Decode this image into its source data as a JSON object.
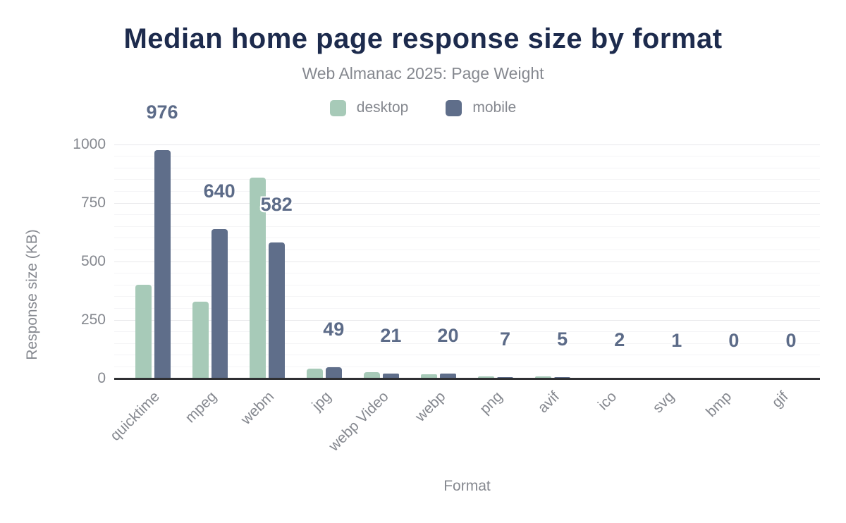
{
  "header": {
    "title": "Median home page response size by format",
    "subtitle": "Web Almanac 2025: Page Weight"
  },
  "legend": {
    "items": [
      {
        "label": "desktop",
        "color": "#a7cab8"
      },
      {
        "label": "mobile",
        "color": "#5f6e8a"
      }
    ]
  },
  "colors": {
    "title": "#1d2b4d",
    "muted_text": "#85888f",
    "value_label": "#5c6b88",
    "desktop_bar": "#a7cab8",
    "mobile_bar": "#5f6e8a",
    "axis_line": "#2f3033",
    "gridline_major": "#e8e8eb",
    "gridline_minor": "#f4f4f6"
  },
  "chart_data": {
    "type": "bar",
    "title": "Median home page response size by format",
    "subtitle": "Web Almanac 2025: Page Weight",
    "xlabel": "Format",
    "ylabel": "Response size (KB)",
    "ylim": [
      0,
      1000
    ],
    "yticks": [
      0,
      250,
      500,
      750,
      1000
    ],
    "grid": "horizontal, minor gridlines every 50 KB",
    "legend_position": "top-center",
    "categories": [
      "quicktime",
      "mpeg",
      "webm",
      "jpg",
      "webp Video",
      "webp",
      "png",
      "avif",
      "ico",
      "svg",
      "bmp",
      "gif"
    ],
    "series": [
      {
        "name": "desktop",
        "color": "#a7cab8",
        "values": [
          400,
          328,
          857,
          42,
          28,
          18,
          8,
          8,
          2,
          1,
          0,
          0
        ]
      },
      {
        "name": "mobile",
        "color": "#5f6e8a",
        "values": [
          976,
          640,
          582,
          49,
          21,
          20,
          7,
          5,
          2,
          1,
          0,
          0
        ]
      }
    ],
    "bar_labels": {
      "labeled_series": "mobile",
      "values": [
        "976",
        "640",
        "582",
        "49",
        "21",
        "20",
        "7",
        "5",
        "2",
        "1",
        "0",
        "0"
      ]
    }
  }
}
